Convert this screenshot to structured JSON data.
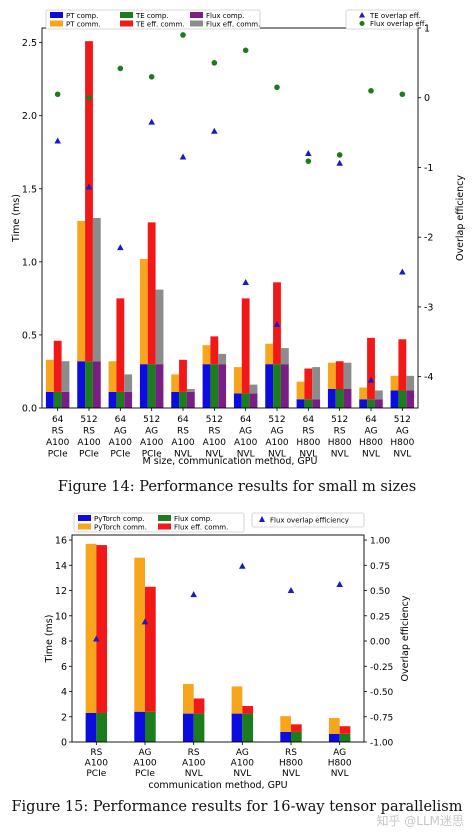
{
  "figure14": {
    "caption": "Figure 14: Performance results for small m sizes",
    "chart_data": {
      "type": "bar",
      "xlabel": "M size, communication method, GPU",
      "ylabel": "Time (ms)",
      "y2label": "Overlap efficiency",
      "ylim": [
        0,
        2.6
      ],
      "y2lim": [
        -4.45,
        1.0
      ],
      "yticks": [
        "0.0",
        "0.5",
        "1.0",
        "1.5",
        "2.0",
        "2.5"
      ],
      "y2ticks": [
        "1",
        "0",
        "-1",
        "-2",
        "-3",
        "-4"
      ],
      "categories": [
        [
          "64",
          "RS",
          "A100",
          "PCIe"
        ],
        [
          "512",
          "RS",
          "A100",
          "PCIe"
        ],
        [
          "64",
          "AG",
          "A100",
          "PCIe"
        ],
        [
          "512",
          "AG",
          "A100",
          "PCIe"
        ],
        [
          "64",
          "RS",
          "A100",
          "NVL"
        ],
        [
          "512",
          "RS",
          "A100",
          "NVL"
        ],
        [
          "64",
          "AG",
          "A100",
          "NVL"
        ],
        [
          "512",
          "AG",
          "A100",
          "NVL"
        ],
        [
          "64",
          "RS",
          "H800",
          "NVL"
        ],
        [
          "512",
          "RS",
          "H800",
          "NVL"
        ],
        [
          "64",
          "AG",
          "H800",
          "NVL"
        ],
        [
          "512",
          "AG",
          "H800",
          "NVL"
        ]
      ],
      "legend": {
        "left": [
          "PT comp.",
          "PT comm.",
          "TE comp.",
          "TE eff. comm.",
          "Flux comp.",
          "Flux eff. comm."
        ],
        "right": [
          "TE overlap eff.",
          "Flux overlap eff."
        ]
      },
      "series": {
        "pt_comp": [
          0.11,
          0.32,
          0.11,
          0.3,
          0.11,
          0.3,
          0.1,
          0.3,
          0.06,
          0.13,
          0.06,
          0.12
        ],
        "pt_comm": [
          0.22,
          0.96,
          0.21,
          0.72,
          0.12,
          0.13,
          0.18,
          0.14,
          0.12,
          0.18,
          0.08,
          0.1
        ],
        "te_comp": [
          0.11,
          0.32,
          0.11,
          0.3,
          0.11,
          0.3,
          0.1,
          0.3,
          0.06,
          0.13,
          0.06,
          0.12
        ],
        "te_comm": [
          0.35,
          2.19,
          0.64,
          0.97,
          0.22,
          0.19,
          0.65,
          0.56,
          0.21,
          0.19,
          0.42,
          0.35
        ],
        "flux_comp": [
          0.11,
          0.32,
          0.11,
          0.3,
          0.11,
          0.3,
          0.1,
          0.3,
          0.06,
          0.13,
          0.06,
          0.12
        ],
        "flux_comm": [
          0.21,
          0.98,
          0.12,
          0.51,
          0.02,
          0.07,
          0.06,
          0.11,
          0.22,
          0.18,
          0.06,
          0.1
        ]
      },
      "te_overlap": [
        -0.62,
        -1.28,
        -2.15,
        -0.35,
        -0.85,
        -0.48,
        -2.65,
        -3.25,
        -0.8,
        -0.94,
        -4.05,
        -2.5
      ],
      "flux_overlap": [
        0.05,
        0.0,
        0.42,
        0.3,
        0.9,
        0.5,
        0.68,
        0.15,
        -0.91,
        -0.82,
        0.1,
        0.05
      ]
    }
  },
  "figure15": {
    "caption": "Figure 15: Performance results for 16-way tensor parallelism",
    "chart_data": {
      "type": "bar",
      "xlabel": "communication method, GPU",
      "ylabel": "Time (ms)",
      "y2label": "Overlap efficiency",
      "ylim": [
        0,
        16.4
      ],
      "y2lim": [
        -1.0,
        1.05
      ],
      "yticks": [
        "0",
        "2",
        "4",
        "6",
        "8",
        "10",
        "12",
        "14",
        "16"
      ],
      "y2ticks": [
        "1.00",
        "0.75",
        "0.50",
        "0.25",
        "0.00",
        "-0.25",
        "-0.50",
        "-0.75",
        "-1.00"
      ],
      "categories": [
        [
          "RS",
          "A100",
          "PCIe"
        ],
        [
          "AG",
          "A100",
          "PCIe"
        ],
        [
          "RS",
          "A100",
          "NVL"
        ],
        [
          "AG",
          "A100",
          "NVL"
        ],
        [
          "RS",
          "H800",
          "NVL"
        ],
        [
          "AG",
          "H800",
          "NVL"
        ]
      ],
      "legend": {
        "left": [
          "PyTorch comp.",
          "PyTorch comm.",
          "Flux comp.",
          "Flux eff. comm."
        ],
        "right": [
          "Flux overlap efficiency"
        ]
      },
      "series": {
        "pt_comp": [
          2.3,
          2.4,
          2.25,
          2.25,
          0.8,
          0.65
        ],
        "pt_comm": [
          13.4,
          12.2,
          2.35,
          2.15,
          1.25,
          1.25
        ],
        "flux_comp": [
          2.3,
          2.4,
          2.25,
          2.25,
          0.8,
          0.65
        ],
        "flux_comm": [
          13.3,
          9.9,
          1.2,
          0.6,
          0.6,
          0.6
        ]
      },
      "flux_overlap": [
        0.02,
        0.19,
        0.46,
        0.74,
        0.5,
        0.56
      ]
    }
  },
  "watermark": "知乎 @LLM迷思",
  "colors": {
    "blue": "#0c0cde",
    "orange": "#f7a51c",
    "green": "#1b7d1b",
    "red": "#f21818",
    "purple": "#7b1d86",
    "gray": "#8c8c8c",
    "marker_blue": "#1a1ac8",
    "marker_green": "#1f7a1f"
  }
}
